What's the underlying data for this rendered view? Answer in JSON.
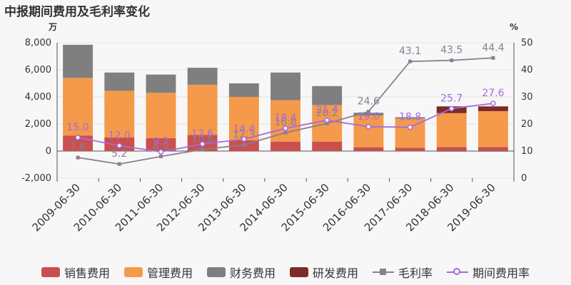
{
  "title": "中报期间费用及毛利率变化",
  "chart_data": {
    "type": "bar",
    "title": "中报期间费用及毛利率变化",
    "left_unit": "万",
    "right_unit": "%",
    "categories": [
      "2009-06-30",
      "2010-06-30",
      "2011-06-30",
      "2012-06-30",
      "2013-06-30",
      "2014-06-30",
      "2015-06-30",
      "2016-06-30",
      "2017-06-30",
      "2018-06-30",
      "2019-06-30"
    ],
    "left_ticks": [
      "8,000",
      "6,000",
      "4,000",
      "2,000",
      "0",
      "-2,000"
    ],
    "right_ticks": [
      "50",
      "40",
      "30",
      "20",
      "10",
      "0"
    ],
    "ylim_left": [
      -2000,
      8000
    ],
    "ylim_right": [
      0,
      50
    ],
    "grid": true,
    "legend_position": "bottom",
    "series": [
      {
        "name": "销售费用",
        "kind": "bar",
        "color": "#c9504f",
        "values": [
          1150,
          1000,
          950,
          1200,
          800,
          700,
          700,
          280,
          250,
          300,
          300
        ]
      },
      {
        "name": "管理费用",
        "kind": "bar",
        "color": "#f5994a",
        "values": [
          4250,
          3450,
          3350,
          3700,
          3200,
          3050,
          2700,
          2350,
          2150,
          2500,
          2650
        ]
      },
      {
        "name": "财务费用",
        "kind": "bar",
        "color": "#7f7f7f",
        "values": [
          2450,
          1350,
          1350,
          1250,
          1000,
          2050,
          1400,
          200,
          100,
          -50,
          -50
        ]
      },
      {
        "name": "研发费用",
        "kind": "bar",
        "color": "#7d2a2a",
        "values": [
          0,
          0,
          0,
          0,
          0,
          0,
          0,
          0,
          0,
          500,
          350
        ]
      },
      {
        "name": "毛利率",
        "kind": "line",
        "axis": "right",
        "color": "#8a7f8f",
        "values": [
          7.6,
          5.2,
          8.0,
          10.6,
          12.3,
          16.8,
          20.2,
          24.6,
          43.1,
          43.5,
          44.4
        ],
        "labels": [
          "7.6",
          "5.2",
          "8.0",
          "10.6",
          "12.3",
          "16.8",
          "20.2",
          "24.6",
          "43.1",
          "43.5",
          "44.4"
        ]
      },
      {
        "name": "期间费用率",
        "kind": "line",
        "axis": "right",
        "color": "#a36be0",
        "values": [
          15.0,
          12.0,
          9.7,
          12.6,
          14.4,
          18.4,
          21.4,
          19.0,
          18.8,
          25.7,
          27.6
        ],
        "labels": [
          "15.0",
          "12.0",
          "9.7",
          "12.6",
          "14.4",
          "18.4",
          "21.4",
          "19.0",
          "18.8",
          "25.7",
          "27.6"
        ]
      }
    ]
  },
  "legend": [
    {
      "label": "销售费用"
    },
    {
      "label": "管理费用"
    },
    {
      "label": "财务费用"
    },
    {
      "label": "研发费用"
    },
    {
      "label": "毛利率"
    },
    {
      "label": "期间费用率"
    }
  ]
}
